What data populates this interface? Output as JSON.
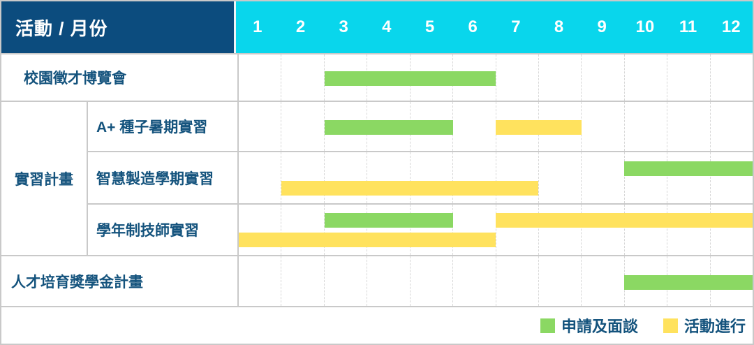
{
  "header": {
    "corner_label": "活動 / 月份",
    "months": [
      "1",
      "2",
      "3",
      "4",
      "5",
      "6",
      "7",
      "8",
      "9",
      "10",
      "11",
      "12"
    ]
  },
  "colors": {
    "navy_header": "#0c4c7e",
    "cyan_header": "#09d6ec",
    "green": "#8bd863",
    "yellow": "#ffe25e",
    "label_text": "#14537d",
    "grid_line": "#c9c9c9",
    "month_divider": "#d7d7d7"
  },
  "legend": {
    "items": [
      {
        "label": "申請及面談",
        "phase": "apply",
        "color": "#8bd863"
      },
      {
        "label": "活動進行",
        "phase": "ongoing",
        "color": "#ffe25e"
      }
    ]
  },
  "chart_data": {
    "type": "gantt",
    "x_axis": {
      "label": "月份",
      "categories": [
        1,
        2,
        3,
        4,
        5,
        6,
        7,
        8,
        9,
        10,
        11,
        12
      ]
    },
    "phases": {
      "apply": "申請及面談",
      "ongoing": "活動進行"
    },
    "rows": [
      {
        "group": null,
        "label": "校園徵才博覽會",
        "lanes": 1,
        "bars": [
          {
            "phase": "apply",
            "start": 3,
            "end": 6,
            "lane": 0
          }
        ]
      },
      {
        "group": "實習計畫",
        "label": "A+ 種子暑期實習",
        "lanes": 1,
        "bars": [
          {
            "phase": "apply",
            "start": 3,
            "end": 5,
            "lane": 0
          },
          {
            "phase": "ongoing",
            "start": 7,
            "end": 8,
            "lane": 0
          }
        ]
      },
      {
        "group": "實習計畫",
        "label": "智慧製造學期實習",
        "lanes": 2,
        "bars": [
          {
            "phase": "apply",
            "start": 10,
            "end": 12,
            "lane": 0
          },
          {
            "phase": "ongoing",
            "start": 2,
            "end": 7,
            "lane": 1
          }
        ]
      },
      {
        "group": "實習計畫",
        "label": "學年制技師實習",
        "lanes": 2,
        "bars": [
          {
            "phase": "apply",
            "start": 3,
            "end": 5,
            "lane": 0
          },
          {
            "phase": "ongoing",
            "start": 7,
            "end": 12,
            "lane": 0
          },
          {
            "phase": "ongoing",
            "start": 1,
            "end": 6,
            "lane": 1
          }
        ]
      },
      {
        "group": null,
        "label": "人才培育獎學金計畫",
        "lanes": 1,
        "bars": [
          {
            "phase": "apply",
            "start": 10,
            "end": 12,
            "lane": 0
          }
        ]
      }
    ],
    "group_label": "實習計畫"
  }
}
